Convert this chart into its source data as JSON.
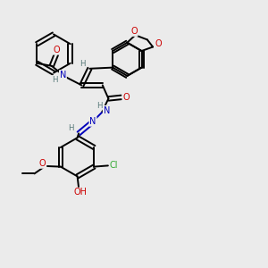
{
  "background_color": "#ebebeb",
  "atom_colors": {
    "C": "#000000",
    "N": "#0000bb",
    "O": "#cc0000",
    "H": "#557777",
    "Cl": "#33aa33"
  },
  "figsize": [
    3.0,
    3.0
  ],
  "dpi": 100
}
